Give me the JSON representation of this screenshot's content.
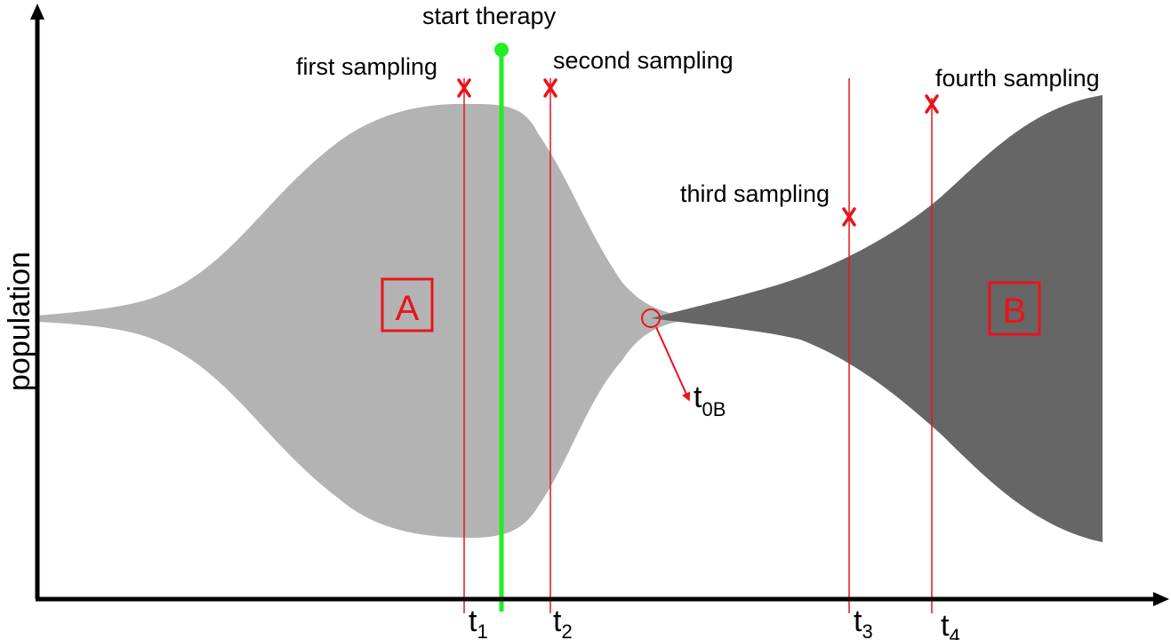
{
  "axes": {
    "y_label": "population"
  },
  "populations": [
    {
      "label": "A",
      "color": "#b3b3b3"
    },
    {
      "label": "B",
      "color": "#666666"
    }
  ],
  "therapy": {
    "label": "start therapy",
    "color": "#22ee22"
  },
  "samplings": [
    {
      "label": "first sampling",
      "time_base": "t",
      "time_sub": "1"
    },
    {
      "label": "second sampling",
      "time_base": "t",
      "time_sub": "2"
    },
    {
      "label": "third sampling",
      "time_base": "t",
      "time_sub": "3"
    },
    {
      "label": "fourth sampling",
      "time_base": "t",
      "time_sub": "4"
    }
  ],
  "origin_marker": {
    "base": "t",
    "sub": "0B"
  },
  "colors": {
    "marker": "#e8141b",
    "axis": "#000000"
  }
}
